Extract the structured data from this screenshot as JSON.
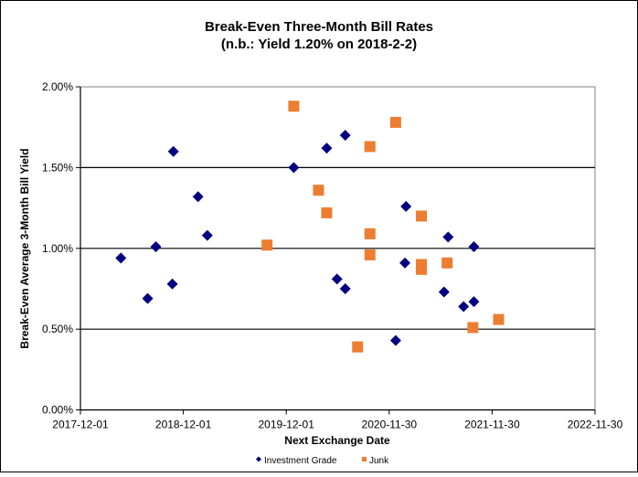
{
  "chart_data": {
    "type": "scatter",
    "title": "Break-Even Three-Month Bill Rates",
    "subtitle": "(n.b.: Yield 1.20% on 2018-2-2)",
    "xlabel": "Next Exchange Date",
    "ylabel": "Break-Even Average 3-Month  Bill Yield",
    "x_units": "decimal year",
    "xlim": [
      2017.917,
      2022.917
    ],
    "ylim": [
      0,
      2.0
    ],
    "x_ticks": [
      {
        "value": 2017.917,
        "label": "2017-12-01"
      },
      {
        "value": 2018.917,
        "label": "2018-12-01"
      },
      {
        "value": 2019.917,
        "label": "2019-12-01"
      },
      {
        "value": 2020.917,
        "label": "2020-11-30"
      },
      {
        "value": 2021.917,
        "label": "2021-11-30"
      },
      {
        "value": 2022.917,
        "label": "2022-11-30"
      }
    ],
    "y_ticks": [
      {
        "value": 0,
        "label": "0.00%"
      },
      {
        "value": 0.5,
        "label": "0.50%"
      },
      {
        "value": 1.0,
        "label": "1.00%"
      },
      {
        "value": 1.5,
        "label": "1.50%"
      },
      {
        "value": 2.0,
        "label": "2.00%"
      }
    ],
    "grid": "horizontal",
    "legend_position": "bottom",
    "series": [
      {
        "name": "Investment Grade",
        "marker": "diamond",
        "color": "#000080",
        "points": [
          [
            2018.31,
            0.94
          ],
          [
            2018.57,
            0.69
          ],
          [
            2018.65,
            1.01
          ],
          [
            2018.81,
            0.78
          ],
          [
            2018.82,
            1.6
          ],
          [
            2019.06,
            1.32
          ],
          [
            2019.15,
            1.08
          ],
          [
            2019.99,
            1.5
          ],
          [
            2020.31,
            1.62
          ],
          [
            2020.41,
            0.81
          ],
          [
            2020.49,
            0.75
          ],
          [
            2020.49,
            1.7
          ],
          [
            2020.98,
            0.43
          ],
          [
            2021.07,
            0.91
          ],
          [
            2021.08,
            1.26
          ],
          [
            2021.45,
            0.73
          ],
          [
            2021.49,
            1.07
          ],
          [
            2021.64,
            0.64
          ],
          [
            2021.74,
            0.67
          ],
          [
            2021.74,
            1.01
          ]
        ]
      },
      {
        "name": "Junk",
        "marker": "square",
        "color": "#ED7D31",
        "points": [
          [
            2019.99,
            1.88
          ],
          [
            2019.73,
            1.02
          ],
          [
            2020.23,
            1.36
          ],
          [
            2020.31,
            1.22
          ],
          [
            2020.61,
            0.39
          ],
          [
            2020.73,
            1.63
          ],
          [
            2020.73,
            1.09
          ],
          [
            2020.73,
            0.96
          ],
          [
            2020.98,
            1.78
          ],
          [
            2021.23,
            1.2
          ],
          [
            2021.23,
            0.9
          ],
          [
            2021.23,
            0.87
          ],
          [
            2021.48,
            0.91
          ],
          [
            2021.73,
            0.51
          ],
          [
            2021.98,
            0.56
          ]
        ]
      }
    ]
  }
}
